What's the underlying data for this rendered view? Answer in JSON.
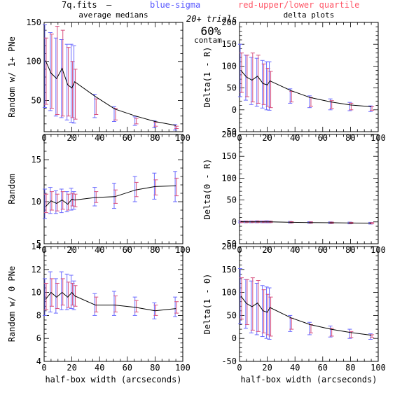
{
  "header": {
    "file": "7q.fits",
    "dash": "—",
    "blue_label": "blue-sigma",
    "red_label": "red-upper/lower quartile",
    "blue_color": "#5555ff",
    "red_color": "#ff5566",
    "trials": "20+ trials",
    "contam_pct": "60%",
    "contam": "contam"
  },
  "colors": {
    "line": "#000000",
    "sigma": "#6a6aff",
    "quartile": "#d8507e"
  },
  "chart_data": [
    {
      "type": "line",
      "panel": "top-left",
      "title": "average medians",
      "ylabel": "Random w/ 1+ PNe",
      "xlabel": "",
      "xlim": [
        0,
        100
      ],
      "ylim": [
        10,
        150
      ],
      "xticks": [
        0,
        20,
        40,
        60,
        80,
        100
      ],
      "yticks": [
        50,
        100,
        150
      ],
      "x": [
        1,
        5,
        9,
        13,
        17,
        20,
        22,
        37,
        51,
        66,
        80,
        95
      ],
      "y": [
        101,
        85,
        78,
        91,
        70,
        66,
        74,
        55,
        39,
        30,
        23,
        18
      ],
      "sigma": [
        [
          41,
          147
        ],
        [
          37,
          137
        ],
        [
          30,
          130
        ],
        [
          28,
          128
        ],
        [
          25,
          122
        ],
        [
          22,
          122
        ],
        [
          21,
          120
        ],
        [
          28,
          58
        ],
        [
          23,
          42
        ],
        [
          18,
          29
        ],
        [
          15,
          24
        ],
        [
          12,
          19
        ]
      ],
      "quartile": [
        [
          45,
          130
        ],
        [
          40,
          135
        ],
        [
          32,
          145
        ],
        [
          30,
          140
        ],
        [
          30,
          118
        ],
        [
          28,
          100
        ],
        [
          26,
          90
        ],
        [
          32,
          52
        ],
        [
          25,
          40
        ],
        [
          20,
          27
        ],
        [
          17,
          22
        ],
        [
          14,
          17
        ]
      ]
    },
    {
      "type": "line",
      "panel": "top-right",
      "title": "delta plots",
      "ylabel": "Delta(1 - R)",
      "xlabel": "",
      "xlim": [
        0,
        100
      ],
      "ylim": [
        -50,
        200
      ],
      "xticks": [
        0,
        20,
        40,
        60,
        80,
        100
      ],
      "yticks": [
        -50,
        0,
        50,
        100,
        150,
        200
      ],
      "x": [
        1,
        5,
        9,
        13,
        17,
        20,
        22,
        37,
        51,
        66,
        80,
        95
      ],
      "y": [
        90,
        75,
        68,
        77,
        60,
        57,
        66,
        44,
        28,
        18,
        11,
        7
      ],
      "sigma": [
        [
          30,
          150
        ],
        [
          22,
          125
        ],
        [
          12,
          120
        ],
        [
          8,
          118
        ],
        [
          4,
          113
        ],
        [
          0,
          110
        ],
        [
          -1,
          110
        ],
        [
          15,
          48
        ],
        [
          5,
          32
        ],
        [
          0,
          25
        ],
        [
          -2,
          17
        ],
        [
          -4,
          9
        ]
      ],
      "quartile": [
        [
          40,
          130
        ],
        [
          30,
          125
        ],
        [
          18,
          130
        ],
        [
          15,
          125
        ],
        [
          12,
          105
        ],
        [
          8,
          95
        ],
        [
          5,
          88
        ],
        [
          18,
          42
        ],
        [
          8,
          28
        ],
        [
          3,
          21
        ],
        [
          0,
          15
        ],
        [
          -1,
          7
        ]
      ]
    },
    {
      "type": "line",
      "panel": "middle-left",
      "title": "",
      "ylabel": "Random",
      "xlabel": "",
      "xlim": [
        0,
        100
      ],
      "ylim": [
        5,
        18
      ],
      "xticks": [
        0,
        20,
        40,
        60,
        80,
        100
      ],
      "yticks": [
        5,
        10,
        15
      ],
      "x": [
        1,
        5,
        9,
        13,
        17,
        20,
        22,
        37,
        51,
        66,
        80,
        95
      ],
      "y": [
        9.4,
        10.1,
        9.8,
        10.2,
        9.7,
        10.3,
        10.2,
        10.5,
        10.6,
        11.4,
        11.8,
        11.9
      ],
      "sigma": [
        [
          8.0,
          11.5
        ],
        [
          8.6,
          11.7
        ],
        [
          8.6,
          11.3
        ],
        [
          8.7,
          11.5
        ],
        [
          8.8,
          11.2
        ],
        [
          9.0,
          11.6
        ],
        [
          9.1,
          11.2
        ],
        [
          9.5,
          11.7
        ],
        [
          9.2,
          12.2
        ],
        [
          10.0,
          13.0
        ],
        [
          10.3,
          13.4
        ],
        [
          10.0,
          13.6
        ]
      ],
      "quartile": [
        [
          8.7,
          10.9
        ],
        [
          9.0,
          11.2
        ],
        [
          8.9,
          10.9
        ],
        [
          9.1,
          11.2
        ],
        [
          9.0,
          10.9
        ],
        [
          9.5,
          11.0
        ],
        [
          9.4,
          10.9
        ],
        [
          9.9,
          11.2
        ],
        [
          9.8,
          11.4
        ],
        [
          10.6,
          12.3
        ],
        [
          10.8,
          12.6
        ],
        [
          10.7,
          12.8
        ]
      ]
    },
    {
      "type": "line",
      "panel": "middle-right",
      "title": "",
      "ylabel": "Delta(0 - R)",
      "xlabel": "",
      "xlim": [
        0,
        100
      ],
      "ylim": [
        -50,
        200
      ],
      "xticks": [
        0,
        20,
        40,
        60,
        80,
        100
      ],
      "yticks": [
        -50,
        0,
        50,
        100,
        150,
        200
      ],
      "x": [
        1,
        5,
        9,
        13,
        17,
        20,
        22,
        37,
        51,
        66,
        80,
        95
      ],
      "y": [
        0.5,
        0,
        0,
        0.3,
        0,
        0.2,
        0,
        -1,
        -1.5,
        -2,
        -2.5,
        -3
      ],
      "sigma": [
        [
          -2,
          2
        ],
        [
          -2,
          2
        ],
        [
          -2,
          2
        ],
        [
          -2,
          2.5
        ],
        [
          -2,
          2
        ],
        [
          -2,
          2.5
        ],
        [
          -2,
          2
        ],
        [
          -3,
          1
        ],
        [
          -3.5,
          0.5
        ],
        [
          -4,
          0
        ],
        [
          -4.5,
          -0.5
        ],
        [
          -5,
          -1
        ]
      ],
      "quartile": [
        [
          -1.5,
          1.5
        ],
        [
          -1.5,
          1.5
        ],
        [
          -1.5,
          1.5
        ],
        [
          -1.5,
          2
        ],
        [
          -1.5,
          1.5
        ],
        [
          -1.5,
          2
        ],
        [
          -1.5,
          1.5
        ],
        [
          -2.5,
          0.5
        ],
        [
          -3,
          0
        ],
        [
          -3.5,
          -0.5
        ],
        [
          -4,
          -1
        ],
        [
          -4.5,
          -1.5
        ]
      ]
    },
    {
      "type": "line",
      "panel": "bottom-left",
      "title": "",
      "ylabel": "Random w/ 0 PNe",
      "xlabel": "half-box width (arcseconds)",
      "xlim": [
        0,
        100
      ],
      "ylim": [
        4,
        14
      ],
      "xticks": [
        0,
        20,
        40,
        60,
        80,
        100
      ],
      "yticks": [
        4,
        6,
        8,
        10,
        12,
        14
      ],
      "x": [
        1,
        5,
        9,
        13,
        17,
        20,
        22,
        37,
        51,
        66,
        80,
        95
      ],
      "y": [
        9.4,
        10.0,
        9.6,
        10.0,
        9.6,
        10.0,
        9.7,
        8.9,
        8.9,
        8.7,
        8.4,
        8.6
      ],
      "sigma": [
        [
          8.0,
          11.2
        ],
        [
          8.3,
          11.8
        ],
        [
          8.2,
          11.2
        ],
        [
          8.5,
          11.8
        ],
        [
          8.5,
          11.6
        ],
        [
          8.6,
          11.5
        ],
        [
          8.5,
          11.0
        ],
        [
          8.0,
          9.9
        ],
        [
          8.0,
          10.1
        ],
        [
          8.0,
          9.6
        ],
        [
          7.7,
          9.1
        ],
        [
          7.9,
          9.6
        ]
      ],
      "quartile": [
        [
          8.5,
          10.8
        ],
        [
          8.8,
          11.2
        ],
        [
          8.6,
          10.8
        ],
        [
          8.9,
          11.2
        ],
        [
          8.7,
          10.9
        ],
        [
          8.9,
          10.8
        ],
        [
          8.8,
          10.6
        ],
        [
          8.3,
          9.6
        ],
        [
          8.3,
          9.7
        ],
        [
          8.3,
          9.3
        ],
        [
          8.0,
          8.9
        ],
        [
          8.2,
          9.2
        ]
      ]
    },
    {
      "type": "line",
      "panel": "bottom-right",
      "title": "",
      "ylabel": "Delta(1 - 0)",
      "xlabel": "half-box width (arcseconds)",
      "xlim": [
        0,
        100
      ],
      "ylim": [
        -50,
        200
      ],
      "xticks": [
        0,
        20,
        40,
        60,
        80,
        100
      ],
      "yticks": [
        -50,
        0,
        50,
        100,
        150,
        200
      ],
      "x": [
        1,
        5,
        9,
        13,
        17,
        20,
        22,
        37,
        51,
        66,
        80,
        95
      ],
      "y": [
        92,
        76,
        69,
        77,
        60,
        57,
        67,
        45,
        30,
        20,
        13,
        7
      ],
      "sigma": [
        [
          32,
          152
        ],
        [
          22,
          128
        ],
        [
          12,
          125
        ],
        [
          8,
          120
        ],
        [
          4,
          115
        ],
        [
          0,
          112
        ],
        [
          -2,
          110
        ],
        [
          15,
          50
        ],
        [
          8,
          35
        ],
        [
          3,
          27
        ],
        [
          0,
          20
        ],
        [
          -2,
          10
        ]
      ],
      "quartile": [
        [
          42,
          132
        ],
        [
          30,
          128
        ],
        [
          18,
          132
        ],
        [
          15,
          126
        ],
        [
          12,
          106
        ],
        [
          8,
          96
        ],
        [
          5,
          90
        ],
        [
          20,
          44
        ],
        [
          12,
          30
        ],
        [
          5,
          22
        ],
        [
          2,
          15
        ],
        [
          2,
          8
        ]
      ]
    }
  ]
}
